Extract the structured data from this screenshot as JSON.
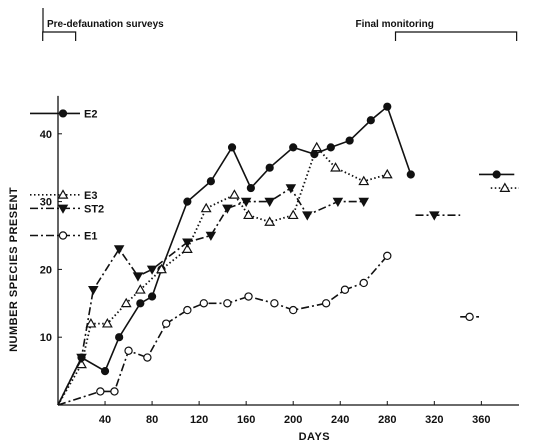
{
  "chart_data": {
    "type": "line",
    "xlabel": "DAYS",
    "ylabel": "NUMBER SPECIES PRESENT",
    "xlim": [
      0,
      392
    ],
    "ylim": [
      0,
      45
    ],
    "xticks": [
      40,
      80,
      120,
      160,
      200,
      240,
      280,
      320,
      360
    ],
    "yticks": [
      10,
      20,
      30,
      40
    ],
    "annotations": {
      "pre": "Pre-defaunation surveys",
      "final": "Final monitoring"
    },
    "pre_bracket_range": [
      -13,
      15
    ],
    "final_bracket_range": [
      287,
      390
    ],
    "series": [
      {
        "name": "E2",
        "marker": "filled-circle",
        "dash": "solid",
        "x": [
          0,
          20,
          40,
          52,
          70,
          80,
          88,
          110,
          130,
          148,
          164,
          180,
          200,
          218,
          232,
          248,
          266,
          280,
          300
        ],
        "y": [
          0,
          7,
          5,
          10,
          15,
          16,
          20,
          30,
          33,
          38,
          32,
          35,
          38,
          37,
          38,
          39,
          42,
          44,
          34
        ],
        "final": {
          "x": 373,
          "y": 34,
          "range": [
            358,
            388
          ]
        },
        "pre": {
          "y": 43,
          "range": [
            -13,
            0
          ]
        }
      },
      {
        "name": "E3",
        "marker": "open-triangle",
        "dash": "dotted",
        "x": [
          0,
          20,
          28,
          42,
          58,
          70,
          88,
          110,
          126,
          150,
          162,
          180,
          200,
          220,
          236,
          260,
          280
        ],
        "y": [
          0,
          6,
          12,
          12,
          15,
          17,
          20,
          23,
          29,
          31,
          28,
          27,
          28,
          38,
          35,
          33,
          34
        ],
        "final": {
          "x": 380,
          "y": 32,
          "range": [
            368,
            392
          ]
        },
        "pre": {
          "y": 31,
          "range": [
            -13,
            0
          ]
        }
      },
      {
        "name": "ST2",
        "marker": "filled-triangle-down",
        "dash": "dashdot",
        "x": [
          0,
          20,
          30,
          52,
          68,
          80,
          110,
          130,
          144,
          160,
          180,
          198,
          212,
          238,
          260
        ],
        "y": [
          0,
          7,
          17,
          23,
          19,
          20,
          24,
          25,
          29,
          30,
          30,
          32,
          28,
          30,
          30
        ],
        "final": {
          "x": 320,
          "y": 28,
          "range": [
            304,
            342
          ]
        },
        "pre": {
          "y": 29,
          "range": [
            -13,
            0
          ]
        }
      },
      {
        "name": "E1",
        "marker": "open-circle",
        "dash": "dashdot",
        "x": [
          0,
          36,
          48,
          60,
          76,
          92,
          110,
          124,
          144,
          162,
          184,
          200,
          228,
          244,
          260,
          280
        ],
        "y": [
          0,
          2,
          2,
          8,
          7,
          12,
          14,
          15,
          15,
          16,
          15,
          14,
          15,
          17,
          18,
          22
        ],
        "final": {
          "x": 350,
          "y": 13,
          "range": [
            342,
            358
          ]
        },
        "pre": {
          "y": 25,
          "range": [
            -13,
            0
          ]
        }
      }
    ]
  }
}
